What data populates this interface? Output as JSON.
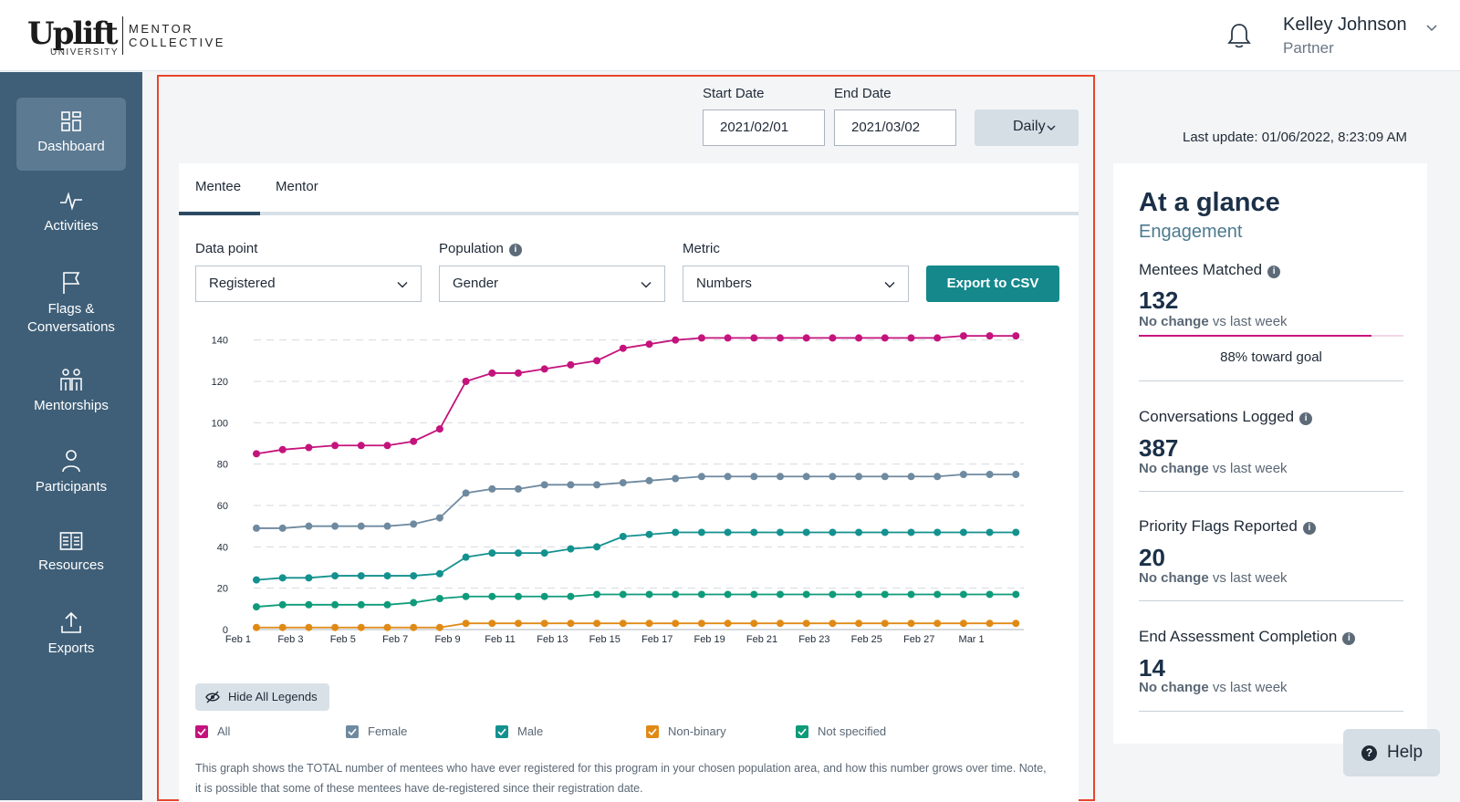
{
  "header": {
    "logo_main": "Uplift",
    "logo_sub": "UNIVERSITY",
    "logo_partner_line1": "MENTOR",
    "logo_partner_line2": "COLLECTIVE",
    "notification_icon": "bell-icon",
    "user_name": "Kelley Johnson",
    "user_role": "Partner"
  },
  "sidebar": {
    "items": [
      {
        "label": "Dashboard",
        "icon": "dashboard-icon",
        "active": true
      },
      {
        "label": "Activities",
        "icon": "activity-icon"
      },
      {
        "label": "Flags & Conversations",
        "icon": "flag-icon"
      },
      {
        "label": "Mentorships",
        "icon": "mentorships-icon"
      },
      {
        "label": "Participants",
        "icon": "person-icon"
      },
      {
        "label": "Resources",
        "icon": "book-icon"
      },
      {
        "label": "Exports",
        "icon": "upload-icon"
      }
    ]
  },
  "filters": {
    "start_date_label": "Start Date",
    "start_date_value": "2021/02/01",
    "end_date_label": "End Date",
    "end_date_value": "2021/03/02",
    "interval": "Daily"
  },
  "last_update": "Last update: 01/06/2022, 8:23:09 AM",
  "tabs": [
    {
      "label": "Mentee",
      "active": true
    },
    {
      "label": "Mentor",
      "active": false
    }
  ],
  "controls": {
    "data_point_label": "Data point",
    "data_point_value": "Registered",
    "population_label": "Population",
    "population_value": "Gender",
    "metric_label": "Metric",
    "metric_value": "Numbers",
    "export_label": "Export to CSV"
  },
  "chart_data": {
    "type": "line",
    "title": "",
    "xlabel": "",
    "ylabel": "",
    "ylim": [
      0,
      150
    ],
    "yticks": [
      0,
      20,
      40,
      60,
      80,
      100,
      120,
      140
    ],
    "x_tick_labels": [
      "Feb 1",
      "Feb 3",
      "Feb 5",
      "Feb 7",
      "Feb 9",
      "Feb 11",
      "Feb 13",
      "Feb 15",
      "Feb 17",
      "Feb 19",
      "Feb 21",
      "Feb 23",
      "Feb 25",
      "Feb 27",
      "Mar 1"
    ],
    "x": [
      "Feb 1",
      "Feb 2",
      "Feb 3",
      "Feb 4",
      "Feb 5",
      "Feb 6",
      "Feb 7",
      "Feb 8",
      "Feb 9",
      "Feb 10",
      "Feb 11",
      "Feb 12",
      "Feb 13",
      "Feb 14",
      "Feb 15",
      "Feb 16",
      "Feb 17",
      "Feb 18",
      "Feb 19",
      "Feb 20",
      "Feb 21",
      "Feb 22",
      "Feb 23",
      "Feb 24",
      "Feb 25",
      "Feb 26",
      "Feb 27",
      "Feb 28",
      "Mar 1",
      "Mar 2"
    ],
    "grid": true,
    "series": [
      {
        "name": "All",
        "color": "#c4137c",
        "values": [
          85,
          87,
          88,
          89,
          89,
          89,
          91,
          97,
          120,
          124,
          124,
          126,
          128,
          130,
          136,
          138,
          140,
          141,
          141,
          141,
          141,
          141,
          141,
          141,
          141,
          141,
          141,
          142,
          142,
          142
        ]
      },
      {
        "name": "Female",
        "color": "#6e8aa0",
        "values": [
          49,
          49,
          50,
          50,
          50,
          50,
          51,
          54,
          66,
          68,
          68,
          70,
          70,
          70,
          71,
          72,
          73,
          74,
          74,
          74,
          74,
          74,
          74,
          74,
          74,
          74,
          74,
          75,
          75,
          75
        ]
      },
      {
        "name": "Male",
        "color": "#13918f",
        "values": [
          24,
          25,
          25,
          26,
          26,
          26,
          26,
          27,
          35,
          37,
          37,
          37,
          39,
          40,
          45,
          46,
          47,
          47,
          47,
          47,
          47,
          47,
          47,
          47,
          47,
          47,
          47,
          47,
          47,
          47
        ]
      },
      {
        "name": "Non-binary",
        "color": "#e08a16",
        "values": [
          1,
          1,
          1,
          1,
          1,
          1,
          1,
          1,
          3,
          3,
          3,
          3,
          3,
          3,
          3,
          3,
          3,
          3,
          3,
          3,
          3,
          3,
          3,
          3,
          3,
          3,
          3,
          3,
          3,
          3
        ]
      },
      {
        "name": "Not specified",
        "color": "#0e9b7a",
        "values": [
          11,
          12,
          12,
          12,
          12,
          12,
          13,
          15,
          16,
          16,
          16,
          16,
          16,
          17,
          17,
          17,
          17,
          17,
          17,
          17,
          17,
          17,
          17,
          17,
          17,
          17,
          17,
          17,
          17,
          17
        ]
      }
    ]
  },
  "legend": {
    "hide_label": "Hide All Legends"
  },
  "note": "This graph shows the TOTAL number of mentees who have ever registered for this program in your chosen population area, and how this number grows over time. Note, it is possible that some of these mentees have de-registered since their registration date.",
  "glance": {
    "title": "At a glance",
    "subtitle": "Engagement",
    "stats": [
      {
        "label": "Mentees Matched",
        "value": "132",
        "change_bold": "No change",
        "change_rest": " vs last week",
        "goal_fraction": 0.88,
        "goal_text": "88% toward goal",
        "goal_color": "#c6137e"
      },
      {
        "label": "Conversations Logged",
        "value": "387",
        "change_bold": "No change",
        "change_rest": " vs last week"
      },
      {
        "label": "Priority Flags Reported",
        "value": "20",
        "change_bold": "No change",
        "change_rest": " vs last week"
      },
      {
        "label": "End Assessment Completion",
        "value": "14",
        "change_bold": "No change",
        "change_rest": " vs last week"
      }
    ]
  },
  "help": {
    "label": "Help",
    "icon_glyph": "?"
  }
}
